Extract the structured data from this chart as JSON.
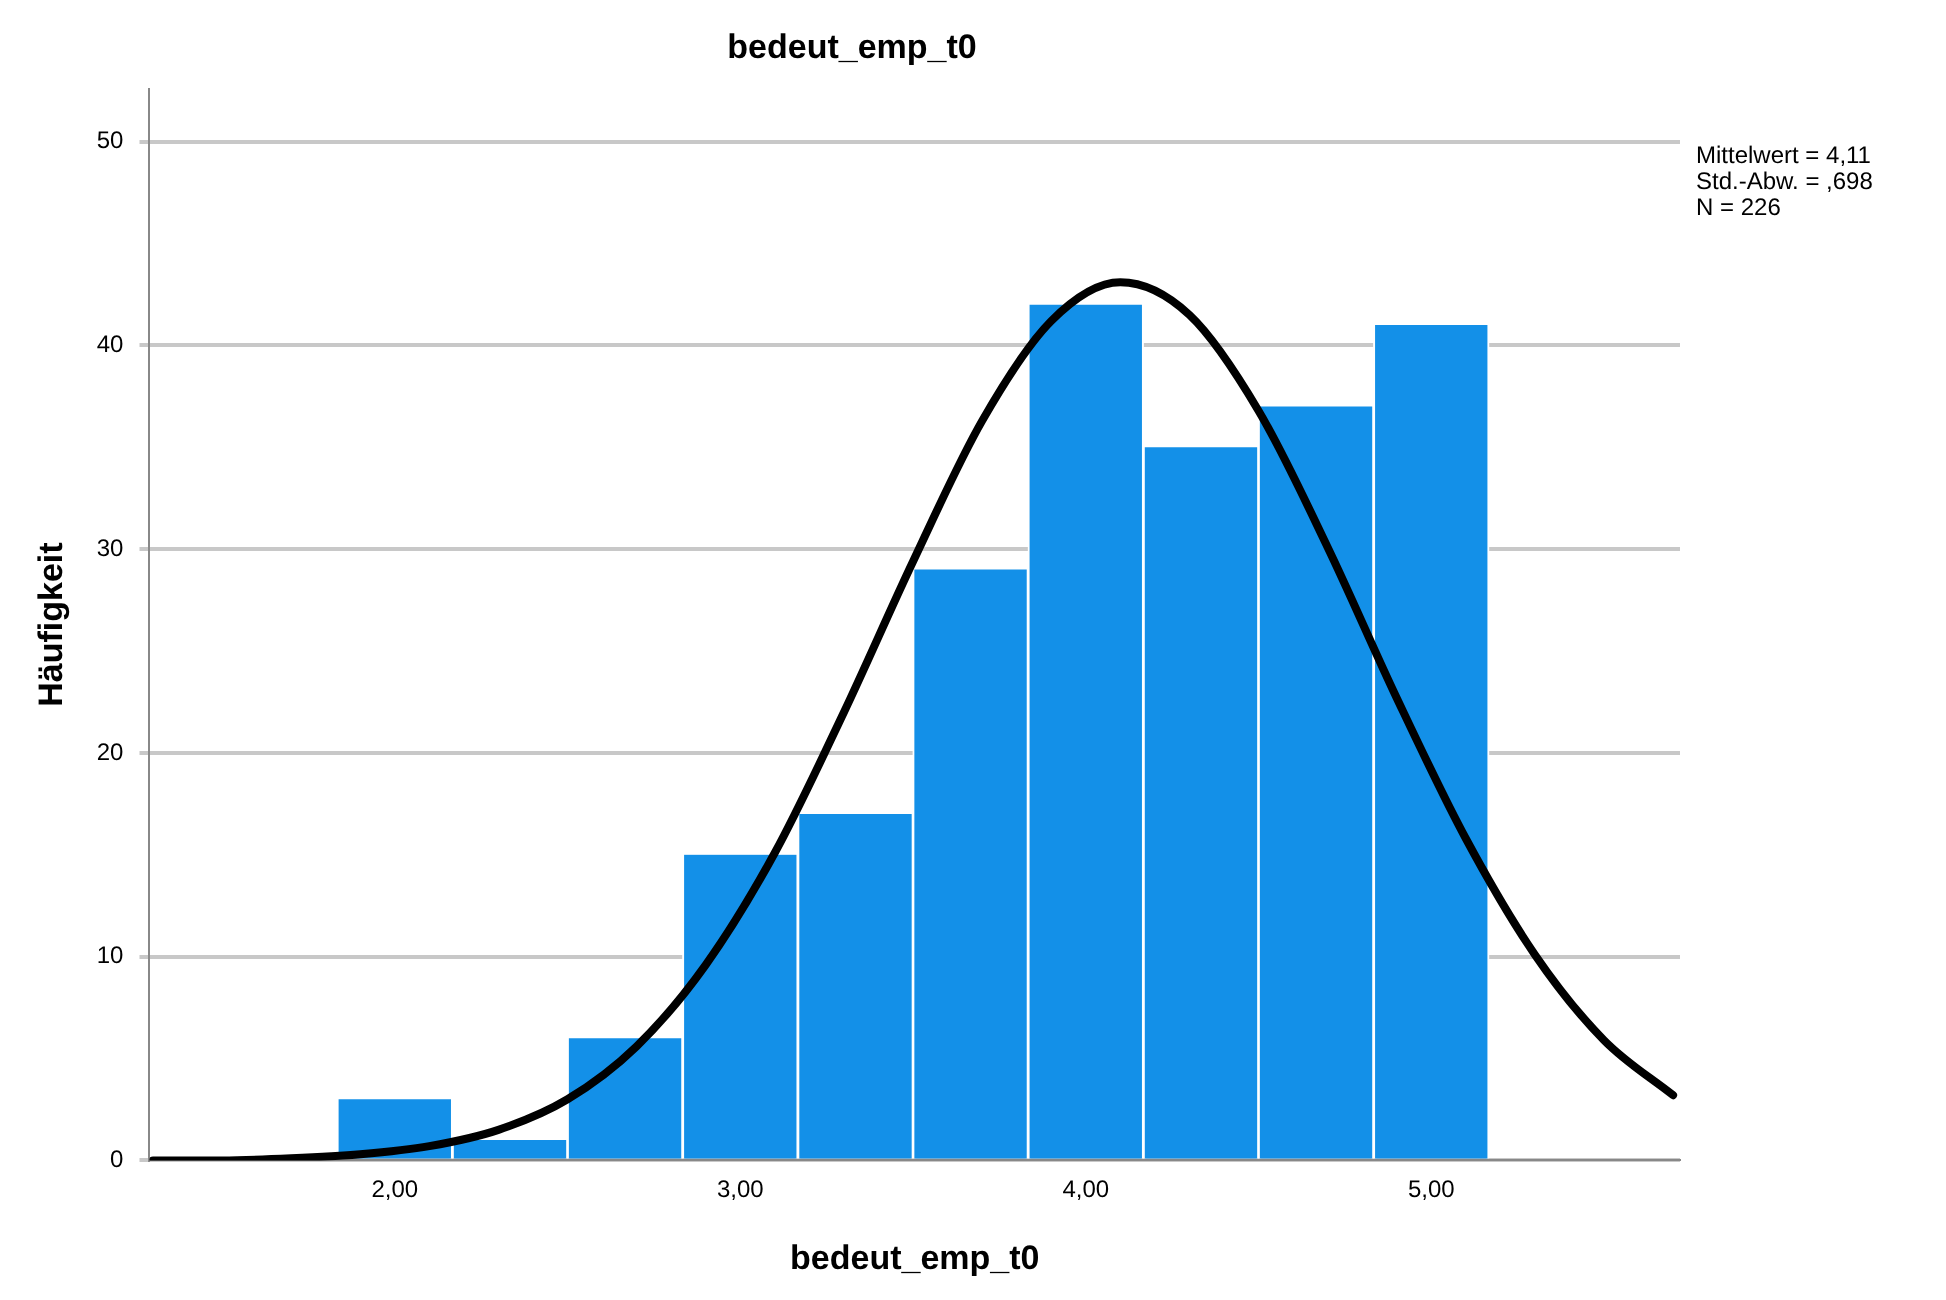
{
  "chart_data": {
    "type": "histogram",
    "title": "bedeut_emp_t0",
    "xlabel": "bedeut_emp_t0",
    "ylabel": "Häufigkeit",
    "bins": [
      1.833,
      2.167,
      2.5,
      2.833,
      3.167,
      3.5,
      3.833,
      4.167,
      4.5,
      4.833,
      5.167
    ],
    "values": [
      3,
      1,
      6,
      15,
      17,
      29,
      42,
      35,
      37,
      41
    ],
    "color": "#1390e8",
    "series": [
      {
        "type": "line",
        "color": "#000000",
        "x": [
          1.3,
          1.5,
          1.7,
          1.9,
          2.1,
          2.3,
          2.5,
          2.7,
          2.9,
          3.1,
          3.3,
          3.5,
          3.7,
          3.9,
          4.1,
          4.3,
          4.5,
          4.7,
          4.9,
          5.1,
          5.3,
          5.5,
          5.7
        ],
        "values": [
          0.0,
          0.0,
          0.1,
          0.3,
          0.7,
          1.5,
          3.0,
          5.6,
          9.6,
          15.1,
          22.0,
          29.4,
          36.3,
          41.2,
          43.1,
          41.5,
          36.8,
          30.1,
          22.7,
          15.8,
          10.1,
          5.9,
          3.2
        ]
      }
    ],
    "xlim": [
      1.29,
      5.72
    ],
    "xticks": [
      {
        "value": 2,
        "label": "2,00"
      },
      {
        "value": 3,
        "label": "3,00"
      },
      {
        "value": 4,
        "label": "4,00"
      },
      {
        "value": 5,
        "label": "5,00"
      }
    ],
    "ylim": [
      0,
      52.6
    ],
    "yticks": [
      0,
      10,
      20,
      30,
      40,
      50
    ],
    "grid": "y",
    "legend": false,
    "annotations": [
      "Mittelwert = 4,11",
      "Std.-Abw. = ,698",
      "N = 226"
    ]
  }
}
